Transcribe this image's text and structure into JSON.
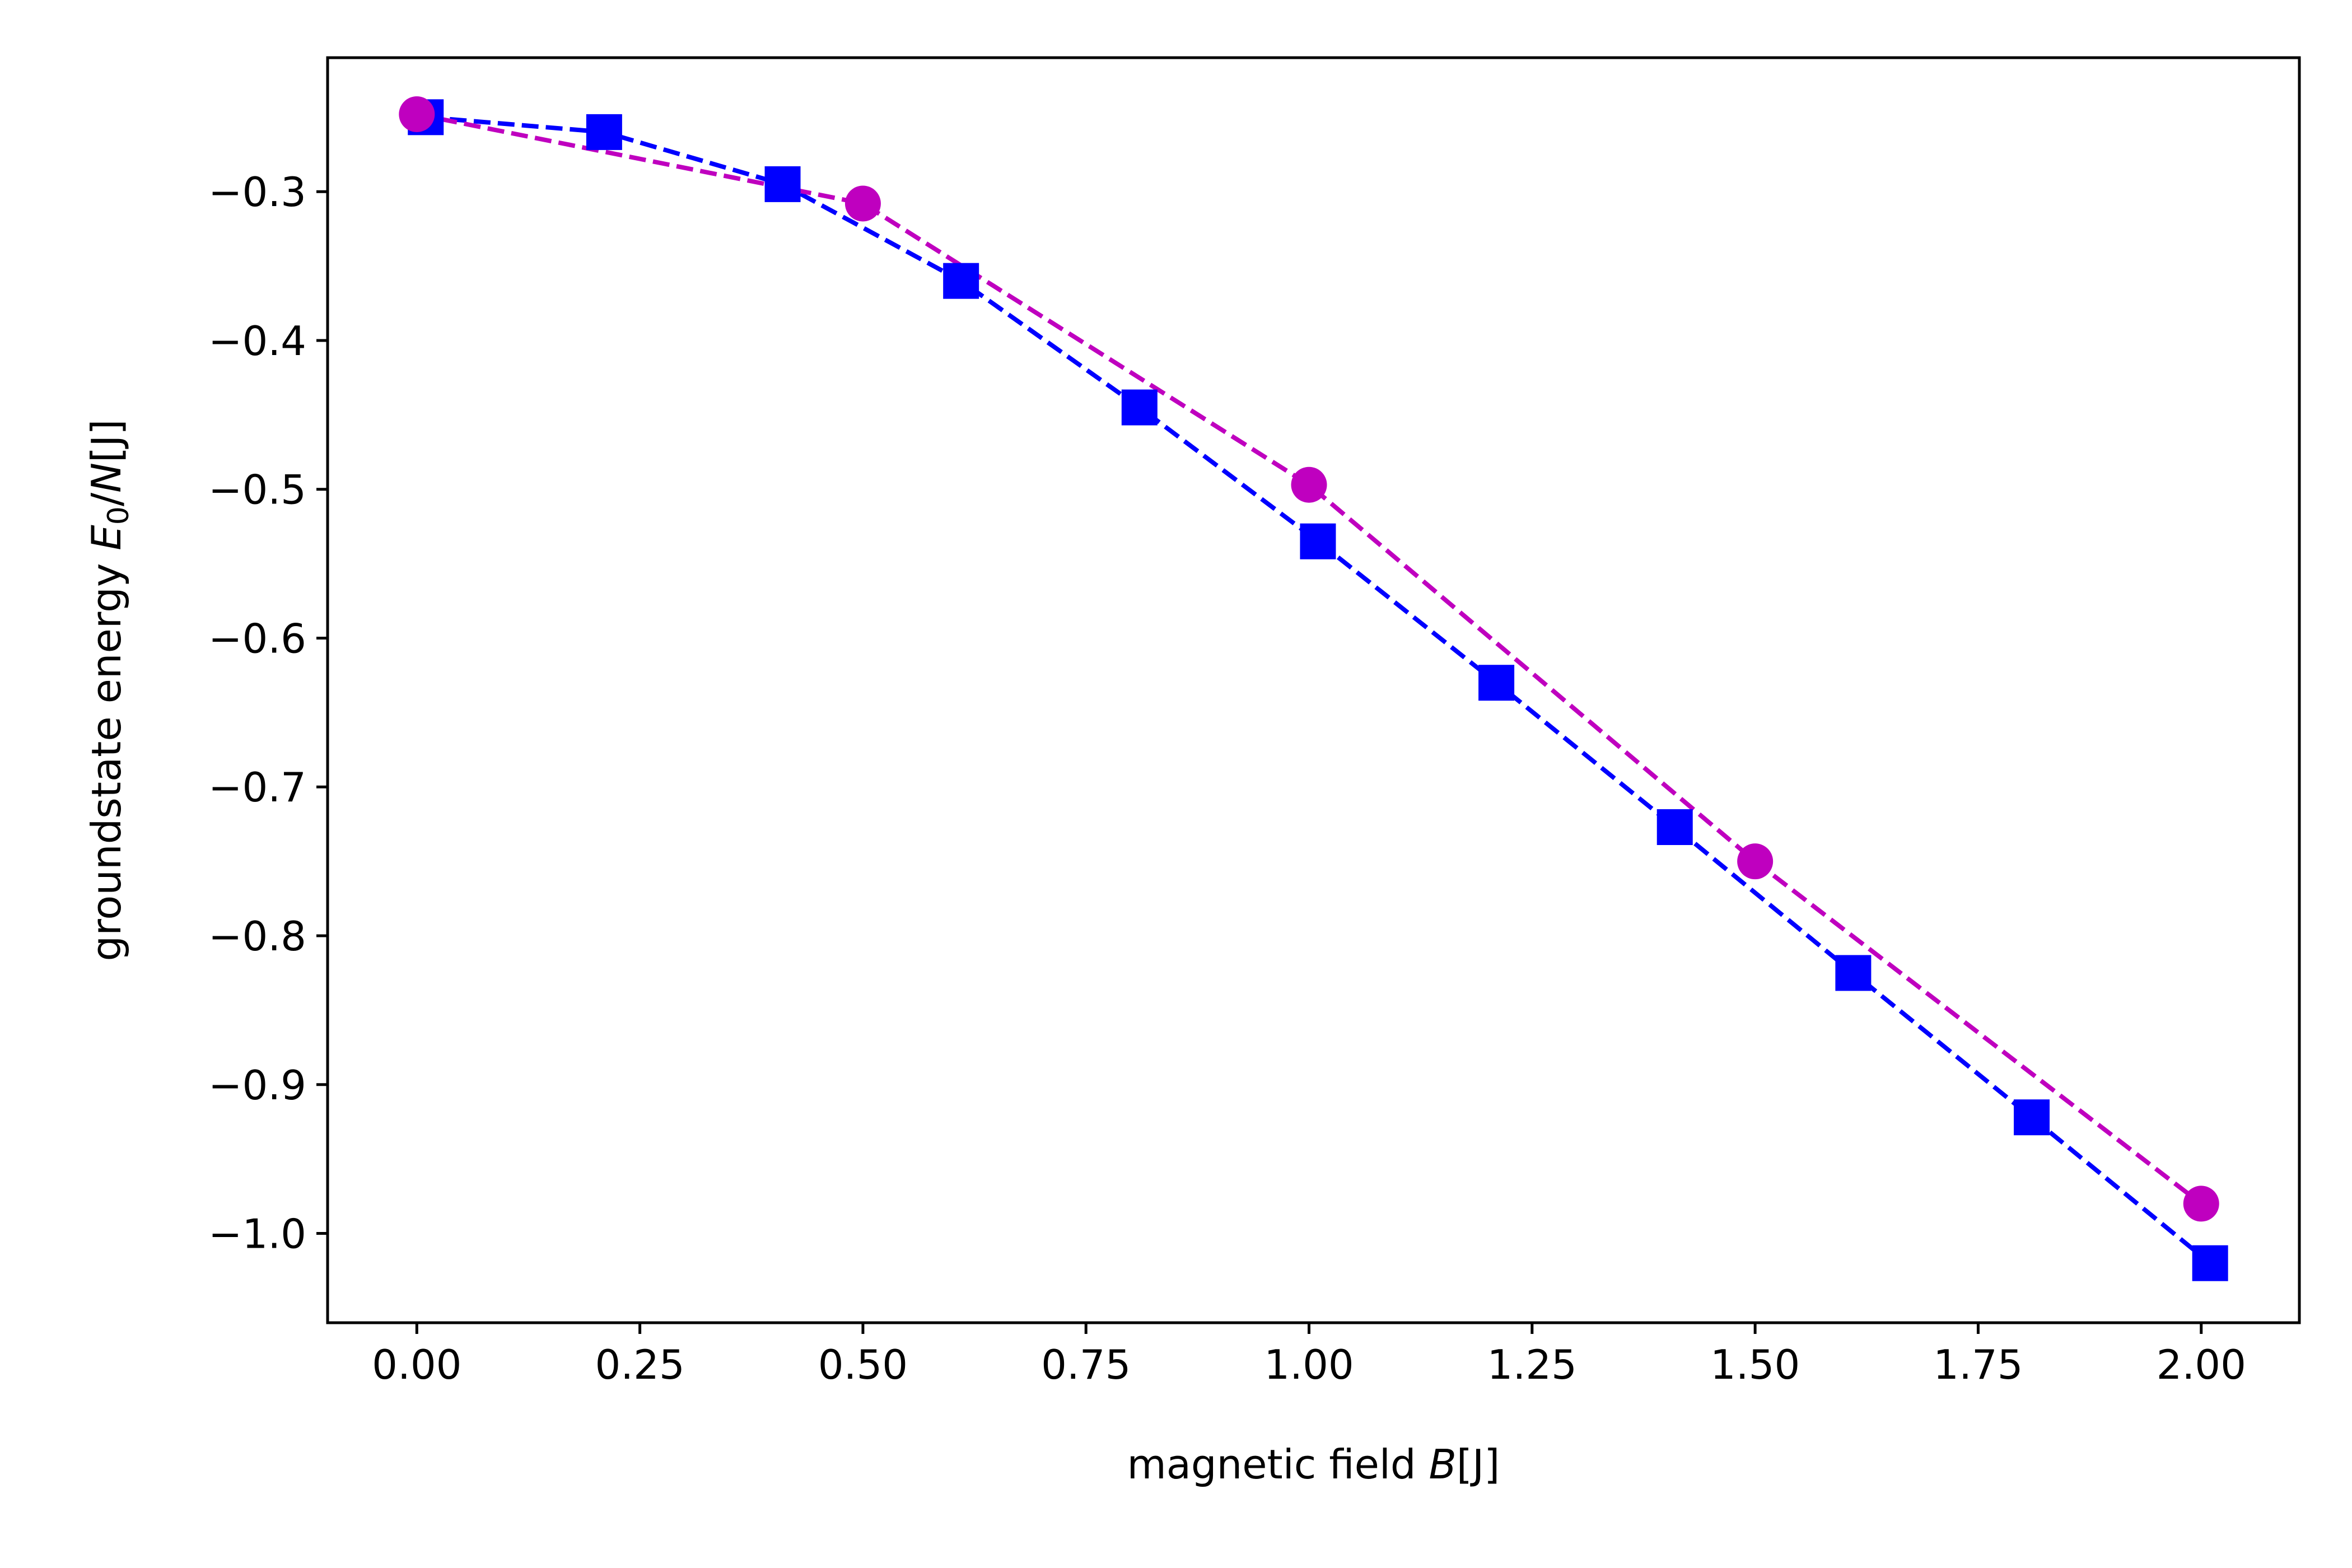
{
  "chart_data": {
    "type": "line",
    "xlabel": {
      "prefix": "magnetic field ",
      "var": "B",
      "suffix": "[J]"
    },
    "ylabel": {
      "prefix": "groundstate energy ",
      "var": "E",
      "sub": "0",
      "mid": "/",
      "var2": "N",
      "suffix": "[J]"
    },
    "xlim": [
      -0.1,
      2.11
    ],
    "ylim": [
      -1.06,
      -0.21
    ],
    "grid": false,
    "x_ticks": [
      0.0,
      0.25,
      0.5,
      0.75,
      1.0,
      1.25,
      1.5,
      1.75,
      2.0
    ],
    "x_tick_labels": [
      "0.00",
      "0.25",
      "0.50",
      "0.75",
      "1.00",
      "1.25",
      "1.50",
      "1.75",
      "2.00"
    ],
    "y_ticks": [
      -0.3,
      -0.4,
      -0.5,
      -0.6,
      -0.7,
      -0.8,
      -0.9,
      -1.0
    ],
    "y_tick_labels": [
      "−0.3",
      "−0.4",
      "−0.5",
      "−0.6",
      "−0.7",
      "−0.8",
      "−0.9",
      "−1.0"
    ],
    "series": [
      {
        "color": "#0000ff",
        "marker": "square",
        "line_style": "dashed",
        "x": [
          0.01,
          0.21,
          0.41,
          0.61,
          0.81,
          1.01,
          1.21,
          1.41,
          1.61,
          1.81,
          2.01
        ],
        "y": [
          -0.25,
          -0.26,
          -0.295,
          -0.36,
          -0.445,
          -0.535,
          -0.63,
          -0.727,
          -0.825,
          -0.922,
          -1.02
        ]
      },
      {
        "color": "#bf00bf",
        "marker": "circle",
        "line_style": "dashed",
        "x": [
          0.0,
          0.5,
          1.0,
          1.5,
          2.0
        ],
        "y": [
          -0.248,
          -0.308,
          -0.497,
          -0.75,
          -0.98
        ]
      }
    ]
  }
}
